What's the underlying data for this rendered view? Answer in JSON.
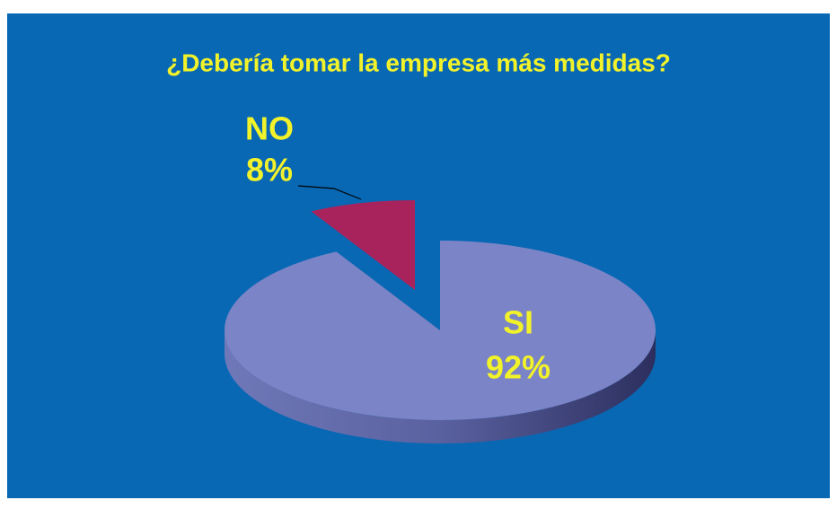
{
  "chart_data": {
    "type": "pie",
    "title": "¿Debería tomar la empresa más medidas?",
    "categories": [
      "SI",
      "NO"
    ],
    "values": [
      92,
      8
    ],
    "value_labels": [
      "92%",
      "8%"
    ],
    "colors": [
      "#7a84c6",
      "#a8235c"
    ]
  }
}
